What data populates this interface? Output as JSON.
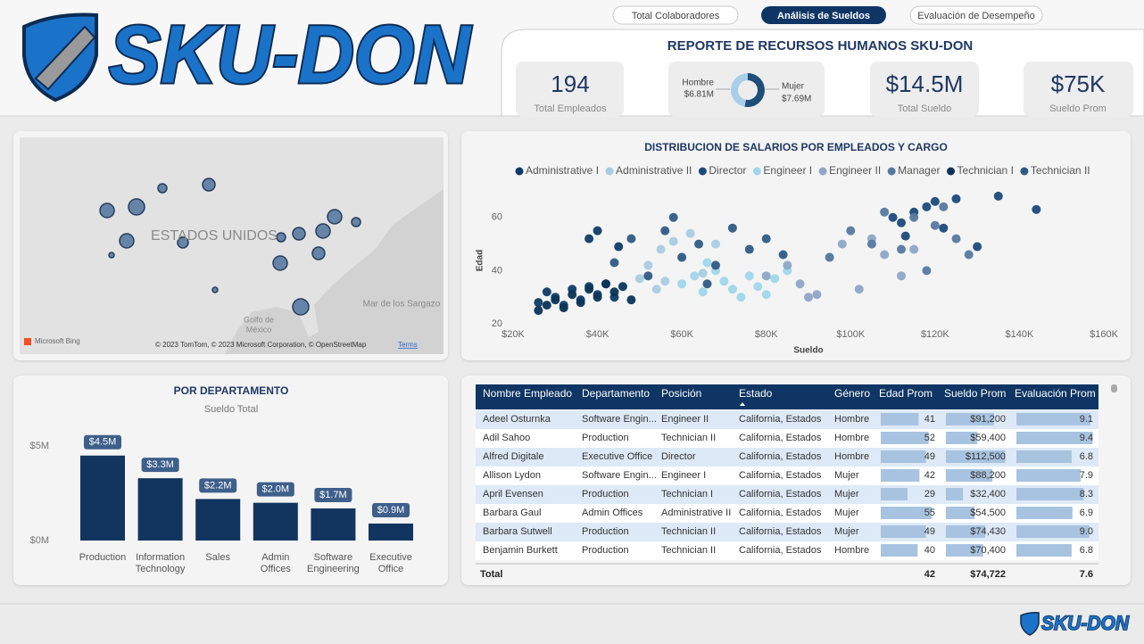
{
  "header": {
    "logo": "SKU-DON",
    "title": "REPORTE DE RECURSOS HUMANOS SKU-DON"
  },
  "nav": [
    "Total Colaboradores",
    "Análisis de Sueldos",
    "Evaluación de Desempeño"
  ],
  "kpis": [
    {
      "value": "194",
      "label": "Total Empleados"
    },
    {
      "value": "$14.5M",
      "label": "Total Sueldo"
    },
    {
      "value": "$75K",
      "label": "Sueldo Prom"
    }
  ],
  "map": {
    "country": "ESTADOS UNIDOS",
    "sea": "Mar de los Sargazo",
    "gulf": [
      "Golfo de",
      "México"
    ],
    "brand": "Microsoft Bing",
    "credits": "© 2023 TomTom, © 2023 Microsoft Corporation, © OpenStreetMap",
    "terms": "Terms"
  },
  "chart_data": [
    {
      "type": "pie",
      "donut": true,
      "categories": [
        "Hombre",
        "Mujer"
      ],
      "values": [
        6810000,
        7690000
      ],
      "value_labels": [
        "$6.81M",
        "$7.69M"
      ],
      "colors": [
        "#a9cfe8",
        "#1f4e79"
      ]
    },
    {
      "type": "scatter",
      "title": "DISTRIBUCION DE SALARIOS POR EMPLEADOS Y CARGO",
      "x_label": "Sueldo",
      "y_label": "Edad",
      "xlim": [
        20000,
        160000
      ],
      "xticks": [
        {
          "value": 20000,
          "label": "$20K"
        },
        {
          "value": 40000,
          "label": "$40K"
        },
        {
          "value": 60000,
          "label": "$60K"
        },
        {
          "value": 80000,
          "label": "$80K"
        },
        {
          "value": 100000,
          "label": "$100K"
        },
        {
          "value": 120000,
          "label": "$120K"
        },
        {
          "value": 140000,
          "label": "$140K"
        },
        {
          "value": 160000,
          "label": "$160K"
        }
      ],
      "ylim": [
        20,
        72
      ],
      "yticks": [
        20,
        40,
        60
      ],
      "series": [
        {
          "name": "Administrative I",
          "color": "#0d3b66",
          "x": [
            26000,
            28000,
            30000,
            32000,
            34000,
            36000,
            38000,
            40000,
            42000,
            44000,
            38000,
            40000,
            45000
          ],
          "values": [
            28,
            32,
            30,
            27,
            33,
            29,
            34,
            31,
            35,
            30,
            52,
            55,
            49
          ]
        },
        {
          "name": "Administrative II",
          "color": "#a9cce3",
          "x": [
            50000,
            52000,
            55000,
            58000,
            60000,
            62000,
            65000,
            54000,
            56000,
            68000
          ],
          "values": [
            37,
            42,
            48,
            51,
            45,
            54,
            39,
            33,
            36,
            50
          ]
        },
        {
          "name": "Director",
          "color": "#1a4a7a",
          "x": [
            110000,
            112000,
            115000,
            118000,
            120000,
            122000,
            125000,
            130000,
            135000,
            144000,
            113000
          ],
          "values": [
            60,
            58,
            62,
            64,
            66,
            56,
            67,
            49,
            68,
            63,
            53
          ]
        },
        {
          "name": "Engineer I",
          "color": "#9fd6ea",
          "x": [
            60000,
            63000,
            65000,
            68000,
            70000,
            72000,
            74000,
            76000,
            78000,
            80000,
            82000,
            85000,
            66000
          ],
          "values": [
            35,
            38,
            32,
            40,
            36,
            33,
            30,
            38,
            34,
            31,
            37,
            40,
            43
          ]
        },
        {
          "name": "Engineer II",
          "color": "#8da7c6",
          "x": [
            80000,
            85000,
            88000,
            92000,
            95000,
            98000,
            102000,
            105000,
            108000,
            112000,
            115000,
            90000
          ],
          "values": [
            38,
            42,
            35,
            31,
            45,
            50,
            33,
            52,
            46,
            38,
            48,
            30
          ]
        },
        {
          "name": "Manager",
          "color": "#56799f",
          "x": [
            95000,
            100000,
            105000,
            108000,
            112000,
            115000,
            118000,
            120000,
            122000,
            125000,
            128000
          ],
          "values": [
            45,
            55,
            50,
            62,
            48,
            60,
            40,
            57,
            64,
            52,
            46
          ]
        },
        {
          "name": "Technician I",
          "color": "#0b3457",
          "x": [
            26000,
            28000,
            30000,
            32000,
            34000,
            36000,
            38000,
            40000,
            42000,
            44000,
            46000,
            48000
          ],
          "values": [
            25,
            27,
            29,
            26,
            31,
            28,
            33,
            30,
            35,
            32,
            34,
            29
          ]
        },
        {
          "name": "Technician II",
          "color": "#2e5b85",
          "x": [
            44000,
            48000,
            52000,
            56000,
            60000,
            64000,
            68000,
            72000,
            76000,
            80000,
            84000,
            58000,
            66000
          ],
          "values": [
            43,
            52,
            38,
            55,
            45,
            50,
            42,
            56,
            48,
            52,
            46,
            60,
            35
          ]
        }
      ]
    },
    {
      "type": "bar",
      "title": "POR DEPARTAMENTO",
      "subtitle": "Sueldo Total",
      "categories": [
        "Production",
        "Information Technology",
        "Sales",
        "Admin Offices",
        "Software Engineering",
        "Executive Office"
      ],
      "values": [
        4500000,
        3300000,
        2200000,
        2000000,
        1700000,
        900000
      ],
      "value_labels": [
        "$4.5M",
        "$3.3M",
        "$2.2M",
        "$2.0M",
        "$1.7M",
        "$0.9M"
      ],
      "color": "#12355f",
      "ylim": [
        0,
        6000000
      ],
      "yticks": [
        {
          "value": 0,
          "label": "$0M"
        },
        {
          "value": 5000000,
          "label": "$5M"
        }
      ]
    }
  ],
  "table": {
    "columns": [
      "Nombre Empleado",
      "Departamento",
      "Posición",
      "Estado",
      "Género",
      "Edad Prom",
      "Sueldo Prom",
      "Evaluación Prom"
    ],
    "rows": [
      [
        "Adeel Osturnka",
        "Software Engin...",
        "Engineer II",
        "California, Estados",
        "Hombre",
        41,
        {
          "value": 91200,
          "label": "$91,200"
        },
        9.1
      ],
      [
        "Adil Sahoo",
        "Production",
        "Technician II",
        "California, Estados",
        "Hombre",
        52,
        {
          "value": 59400,
          "label": "$59,400"
        },
        9.4
      ],
      [
        "Alfred Digitale",
        "Executive Office",
        "Director",
        "California, Estados",
        "Hombre",
        49,
        {
          "value": 112500,
          "label": "$112,500"
        },
        6.8
      ],
      [
        "Allison Lydon",
        "Software Engin...",
        "Engineer I",
        "California, Estados",
        "Mujer",
        42,
        {
          "value": 88200,
          "label": "$88,200"
        },
        7.9
      ],
      [
        "April Evensen",
        "Production",
        "Technician I",
        "California, Estados",
        "Mujer",
        29,
        {
          "value": 32400,
          "label": "$32,400"
        },
        8.3
      ],
      [
        "Barbara Gaul",
        "Admin Offices",
        "Administrative II",
        "California, Estados",
        "Mujer",
        55,
        {
          "value": 54500,
          "label": "$54,500"
        },
        6.9
      ],
      [
        "Barbara Sutwell",
        "Production",
        "Technician II",
        "California, Estados",
        "Mujer",
        49,
        {
          "value": 74430,
          "label": "$74,430"
        },
        {
          "value": 9,
          "label": "9.0"
        }
      ],
      [
        "Benjamin Burkett",
        "Production",
        "Technician II",
        "California, Estados",
        "Hombre",
        40,
        {
          "value": 70400,
          "label": "$70,400"
        },
        6.8
      ]
    ],
    "total": {
      "label": "Total",
      "values": [
        42,
        {
          "value": 74722,
          "label": "$74,722"
        },
        7.6
      ]
    }
  },
  "footer": {
    "logo": "SKU-DON"
  }
}
